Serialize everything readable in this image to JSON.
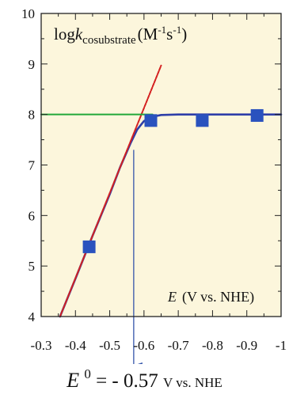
{
  "chart_data": {
    "type": "scatter",
    "title": "",
    "inner_label": {
      "log": "log",
      "k": "k",
      "subscript": "cosubstrate",
      "units_open": "(M",
      "units_exp1": "-1",
      "units_mid": "s",
      "units_exp2": "-1",
      "units_close": ")"
    },
    "xlabel": {
      "symbol": "E",
      "rest": "(V vs. NHE)"
    },
    "x_axis": {
      "direction": "reversed",
      "range": [
        -0.3,
        -1.0
      ],
      "ticks": [
        -0.3,
        -0.4,
        -0.5,
        -0.6,
        -0.7,
        -0.8,
        -0.9,
        -1
      ],
      "tick_labels": [
        "-0.3",
        "-0.4",
        "-0.5",
        "-0.6",
        "-0.7",
        "-0.8",
        "-0.9",
        "-1"
      ]
    },
    "y_axis": {
      "range": [
        4,
        10
      ],
      "ticks": [
        4,
        5,
        6,
        7,
        8,
        9,
        10
      ],
      "tick_labels": [
        "4",
        "5",
        "6",
        "7",
        "8",
        "9",
        "10"
      ]
    },
    "grid": false,
    "series": [
      {
        "kind": "points",
        "marker": "square",
        "color": "#2a52be",
        "x": [
          -0.44,
          -0.62,
          -0.77,
          -0.93
        ],
        "y": [
          5.38,
          7.88,
          7.88,
          7.98
        ]
      },
      {
        "kind": "fit-curve",
        "color": "#2e3ea8",
        "x": [
          -0.355,
          -0.4,
          -0.45,
          -0.5,
          -0.53,
          -0.56,
          -0.58,
          -0.6,
          -0.62,
          -0.65,
          -0.7,
          -0.8,
          -0.9,
          -1.0
        ],
        "y": [
          4.0,
          4.75,
          5.6,
          6.42,
          6.95,
          7.42,
          7.7,
          7.87,
          7.95,
          7.99,
          8.0,
          8.0,
          8.0,
          8.0
        ]
      },
      {
        "kind": "asymptote-linear",
        "color": "#d42020",
        "dashed": true,
        "x": [
          -0.355,
          -0.65
        ],
        "y": [
          4.0,
          8.97
        ]
      },
      {
        "kind": "asymptote-plateau",
        "color": "#22a83a",
        "x": [
          -0.3,
          -0.625
        ],
        "y": [
          8.0,
          8.0
        ]
      }
    ],
    "arrow": {
      "color": "#3355aa",
      "x": -0.57,
      "from_y": 7.3
    }
  },
  "caption": {
    "symbol": "E",
    "superscript": "0",
    "equals": "= - 0.57",
    "unit": "V vs. NHE"
  },
  "colors": {
    "axis": "#222222",
    "plot_background": "#fcf6dc",
    "markers": "#2a52be"
  }
}
